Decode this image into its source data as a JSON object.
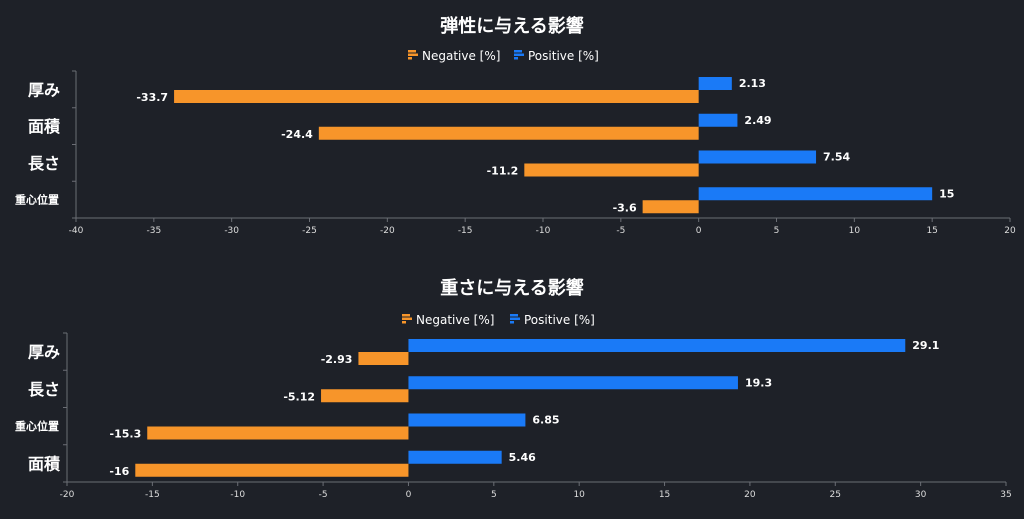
{
  "colors": {
    "background": "#1e2128",
    "negative": "#f7952a",
    "positive": "#1a7af7",
    "axis": "#6b6e75"
  },
  "chart_data": [
    {
      "type": "bar",
      "orientation": "horizontal",
      "title": "弾性に与える影響",
      "categories": [
        "厚み",
        "面積",
        "長さ",
        "重心位置"
      ],
      "series": [
        {
          "name": "Negative [%]",
          "values": [
            -33.7,
            -24.4,
            -11.2,
            -3.6
          ],
          "labels": [
            "-33.7",
            "-24.4",
            "-11.2",
            "-3.6"
          ]
        },
        {
          "name": "Positive [%]",
          "values": [
            2.13,
            2.49,
            7.54,
            15
          ],
          "labels": [
            "2.13",
            "2.49",
            "7.54",
            "15"
          ]
        }
      ],
      "xlim": [
        -40,
        20
      ],
      "xticks": [
        "-40",
        "-35",
        "-30",
        "-25",
        "-20",
        "-15",
        "-10",
        "-5",
        "0",
        "5",
        "10",
        "15",
        "20"
      ],
      "legend": "top-center",
      "grid": false
    },
    {
      "type": "bar",
      "orientation": "horizontal",
      "title": "重さに与える影響",
      "categories": [
        "厚み",
        "長さ",
        "重心位置",
        "面積"
      ],
      "series": [
        {
          "name": "Negative [%]",
          "values": [
            -2.93,
            -5.12,
            -15.3,
            -16
          ],
          "labels": [
            "-2.93",
            "-5.12",
            "-15.3",
            "-16"
          ]
        },
        {
          "name": "Positive [%]",
          "values": [
            29.1,
            19.3,
            6.85,
            5.46
          ],
          "labels": [
            "29.1",
            "19.3",
            "6.85",
            "5.46"
          ]
        }
      ],
      "xlim": [
        -20,
        35
      ],
      "xticks": [
        "-20",
        "-15",
        "-10",
        "-5",
        "0",
        "5",
        "10",
        "15",
        "20",
        "25",
        "30",
        "35"
      ],
      "legend": "top-center",
      "grid": false
    }
  ]
}
